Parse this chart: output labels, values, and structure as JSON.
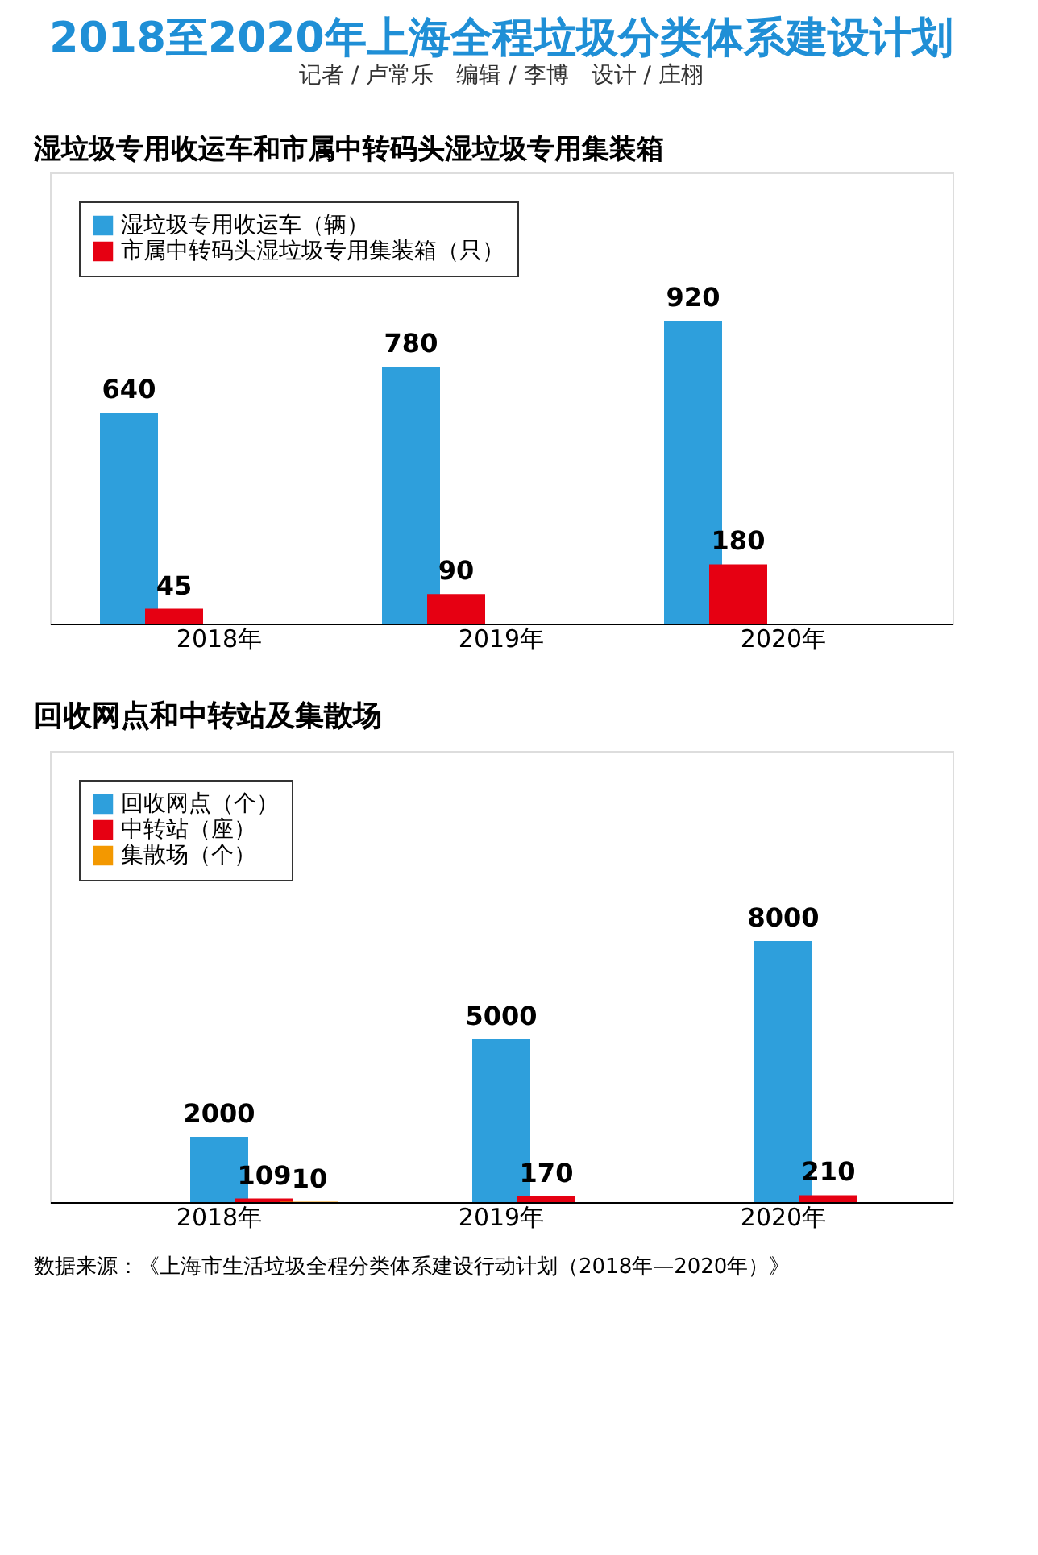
{
  "chart_data": [
    {
      "type": "bar",
      "title": "2018至2020年上海全程垃圾分类体系建设计划",
      "subtitle": "记者 / 卢常乐　编辑 / 李博　设计 / 庄栩",
      "annotations": [
        "湿垃圾专用收运车和市属中转码头湿垃圾专用集装箱"
      ],
      "categories": [
        "2018年",
        "2019年",
        "2020年"
      ],
      "series": [
        {
          "name": "湿垃圾专用收运车（辆）",
          "color": "#2e9fdc",
          "values": [
            640,
            780,
            920
          ]
        },
        {
          "name": "市属中转码头湿垃圾专用集装箱（只）",
          "color": "#e60012",
          "values": [
            45,
            90,
            180
          ]
        }
      ],
      "data_labels": true,
      "tick_labels": "x",
      "grid": false,
      "legend": "top left"
    },
    {
      "type": "bar",
      "title": "回收网点和中转站及集散场",
      "annotations": [
        "数据来源：《上海市生活垃圾全程分类体系建设行动计划（2018年—2020年）》"
      ],
      "categories": [
        "2018年",
        "2019年",
        "2020年"
      ],
      "series": [
        {
          "name": "回收网点（个）",
          "color": "#2e9fdc",
          "values": [
            2000,
            5000,
            8000
          ]
        },
        {
          "name": "中转站（座）",
          "color": "#e60012",
          "values": [
            109,
            170,
            210
          ]
        },
        {
          "name": "集散场（个）",
          "color": "#f39800",
          "values": [
            10,
            null,
            null
          ]
        }
      ],
      "data_labels": true,
      "tick_labels": "x",
      "grid": false,
      "legend": "top left"
    }
  ]
}
